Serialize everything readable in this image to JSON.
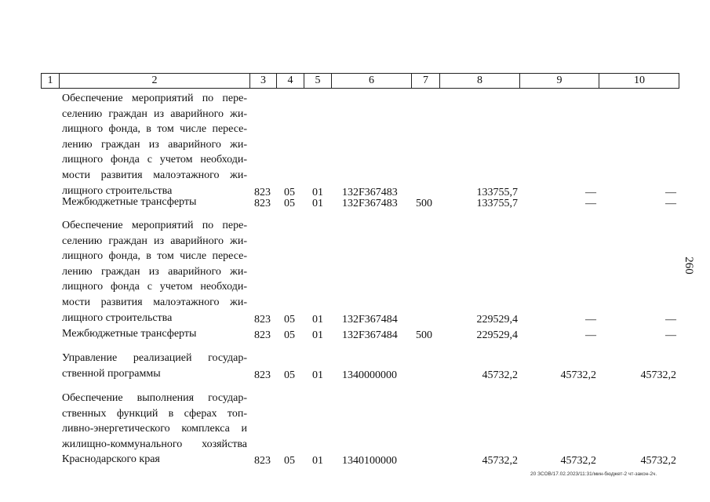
{
  "header": [
    "1",
    "2",
    "3",
    "4",
    "5",
    "6",
    "7",
    "8",
    "9",
    "10"
  ],
  "rows": [
    {
      "lines": [
        "Обеспечение мероприятий по пере-",
        "селению граждан из аварийного жи-",
        "лищного фонда, в том числе пересе-",
        "лению граждан из аварийного жи-",
        "лищного фонда с учетом необходи-",
        "мости развития малоэтажного жи-",
        "лищного строительства"
      ],
      "c3": "823",
      "c4": "05",
      "c5": "01",
      "c6": "132F367483",
      "c7": "",
      "c8": "133755,7",
      "c9": "—",
      "c10": "—"
    },
    {
      "lines": [
        "Межбюджетные трансферты"
      ],
      "c3": "823",
      "c4": "05",
      "c5": "01",
      "c6": "132F367483",
      "c7": "500",
      "c8": "133755,7",
      "c9": "—",
      "c10": "—"
    },
    {
      "lines": [
        "Обеспечение мероприятий по пере-",
        "селению граждан из аварийного жи-",
        "лищного фонда, в том числе пересе-",
        "лению граждан из аварийного жи-",
        "лищного фонда с учетом необходи-",
        "мости развития малоэтажного жи-",
        "лищного строительства"
      ],
      "c3": "823",
      "c4": "05",
      "c5": "01",
      "c6": "132F367484",
      "c7": "",
      "c8": "229529,4",
      "c9": "—",
      "c10": "—"
    },
    {
      "lines": [
        "Межбюджетные трансферты"
      ],
      "c3": "823",
      "c4": "05",
      "c5": "01",
      "c6": "132F367484",
      "c7": "500",
      "c8": "229529,4",
      "c9": "—",
      "c10": "—"
    },
    {
      "lines": [
        "Управление реализацией государ-",
        "ственной программы"
      ],
      "c3": "823",
      "c4": "05",
      "c5": "01",
      "c6": "1340000000",
      "c7": "",
      "c8": "45732,2",
      "c9": "45732,2",
      "c10": "45732,2"
    },
    {
      "lines": [
        "Обеспечение выполнения государ-",
        "ственных функций в сферах топ-",
        "ливно-энергетического комплекса и",
        "жилищно-коммунального хозяйства",
        "Краснодарского края"
      ],
      "c3": "823",
      "c4": "05",
      "c5": "01",
      "c6": "1340100000",
      "c7": "",
      "c8": "45732,2",
      "c9": "45732,2",
      "c10": "45732,2"
    }
  ],
  "page_number": "260",
  "footer": "20 ЗСОВ/17.02.2023/11:31/мин-бюджет-2 чт-закон-2ч."
}
